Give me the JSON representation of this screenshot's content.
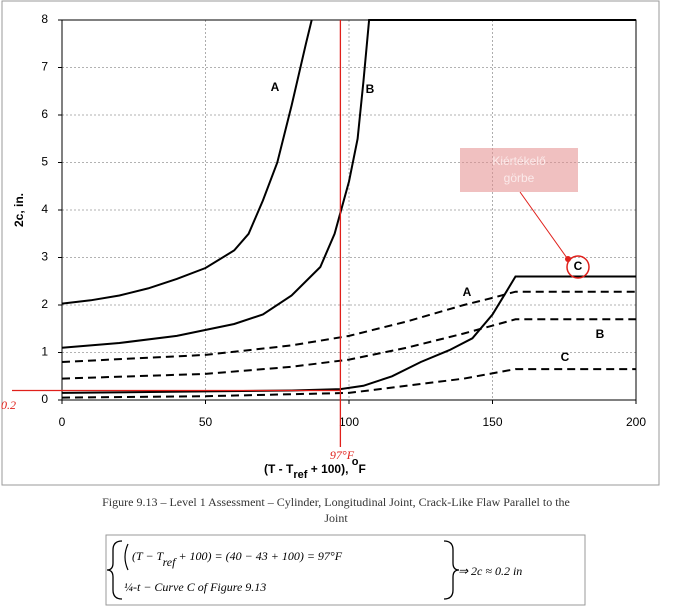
{
  "chart_data": {
    "type": "line",
    "ylabel": "2c, in.",
    "xlabel_parts": [
      "(T  - T",
      "ref",
      " + 100), ",
      "o",
      "F"
    ],
    "xlim": [
      0,
      200
    ],
    "ylim": [
      0,
      8
    ],
    "xticks": [
      0,
      50,
      100,
      150,
      200
    ],
    "yticks": [
      0,
      1,
      2,
      3,
      4,
      5,
      6,
      7,
      8
    ],
    "grid": true,
    "series": [
      {
        "name": "A",
        "style": "solid",
        "color": "#000000",
        "x": [
          0,
          10,
          20,
          30,
          40,
          50,
          60,
          65,
          70,
          75,
          80,
          85,
          87
        ],
        "values": [
          2.03,
          2.1,
          2.2,
          2.35,
          2.55,
          2.78,
          3.15,
          3.5,
          4.2,
          5.0,
          6.2,
          7.5,
          8
        ]
      },
      {
        "name": "B",
        "style": "solid",
        "color": "#000000",
        "x": [
          0,
          20,
          40,
          60,
          70,
          80,
          90,
          95,
          100,
          103,
          105,
          107,
          200
        ],
        "values": [
          1.1,
          1.2,
          1.35,
          1.6,
          1.8,
          2.2,
          2.8,
          3.5,
          4.6,
          5.5,
          6.7,
          8,
          8
        ]
      },
      {
        "name": "C",
        "style": "solid",
        "color": "#000000",
        "x": [
          0,
          50,
          80,
          97,
          105,
          115,
          125,
          135,
          143,
          150,
          155,
          158,
          200
        ],
        "values": [
          0.15,
          0.18,
          0.2,
          0.23,
          0.3,
          0.5,
          0.8,
          1.05,
          1.3,
          1.8,
          2.3,
          2.6,
          2.6
        ]
      },
      {
        "name": "A",
        "style": "dashed",
        "color": "#000000",
        "x": [
          0,
          50,
          80,
          100,
          120,
          140,
          150,
          158,
          200
        ],
        "values": [
          0.8,
          0.95,
          1.15,
          1.35,
          1.65,
          2.0,
          2.15,
          2.28,
          2.28
        ]
      },
      {
        "name": "B",
        "style": "dashed",
        "color": "#000000",
        "x": [
          0,
          50,
          80,
          100,
          120,
          140,
          158,
          200
        ],
        "values": [
          0.45,
          0.55,
          0.7,
          0.85,
          1.1,
          1.4,
          1.7,
          1.7
        ]
      },
      {
        "name": "C",
        "style": "dashed",
        "color": "#000000",
        "x": [
          0,
          50,
          100,
          120,
          140,
          158,
          200
        ],
        "values": [
          0.05,
          0.08,
          0.15,
          0.3,
          0.45,
          0.65,
          0.65
        ]
      }
    ],
    "marker": {
      "x": 97,
      "y": 0.2,
      "x_text": "97°F",
      "y_text": "0.2",
      "color": "#e0201b"
    },
    "callout": [
      "Kiértékelő",
      "görbe"
    ]
  },
  "caption": [
    "Figure 9.13 – Level 1 Assessment – Cylinder, Longitudinal Joint, Crack-Like Flaw Parallel to the",
    "Joint"
  ],
  "equation": {
    "line1a": "(T − T",
    "line1sub": "ref",
    "line1b": " + 100) = (40 − 43 + 100) = 97°F",
    "line2": "¼-t − Curve C of  Figure 9.13",
    "result": "⇒ 2c ≈ 0.2  in"
  }
}
